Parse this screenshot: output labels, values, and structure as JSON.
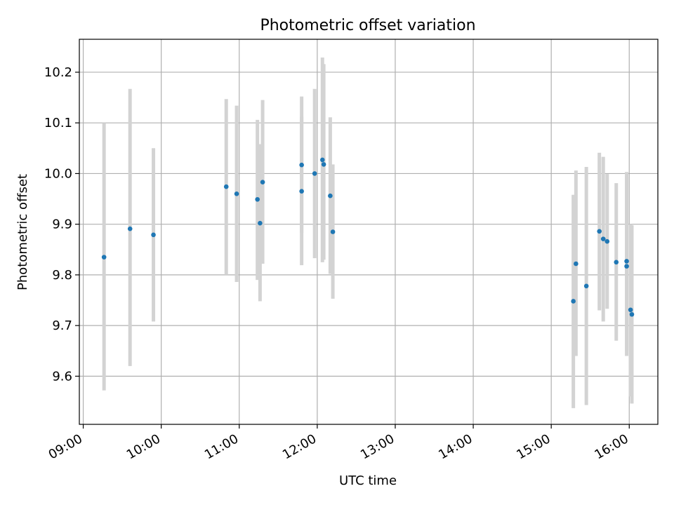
{
  "chart_data": {
    "type": "scatter",
    "title": "Photometric offset variation",
    "xlabel": "UTC time",
    "ylabel": "Photometric offset",
    "x_unit": "hours (UTC)",
    "xlim": [
      "08:57",
      "16:22"
    ],
    "ylim": [
      9.505,
      10.265
    ],
    "xticks": [
      "09:00",
      "10:00",
      "11:00",
      "12:00",
      "13:00",
      "14:00",
      "15:00",
      "16:00"
    ],
    "yticks": [
      "9.6",
      "9.7",
      "9.8",
      "9.9",
      "10.0",
      "10.1",
      "10.2"
    ],
    "grid": true,
    "legend": false,
    "colors": {
      "points": "#1f77b4",
      "errorbars": "#d3d3d3",
      "grid": "#b0b0b0"
    },
    "points": [
      {
        "time": "09:16",
        "y": 9.835,
        "err_low": 9.572,
        "err_high": 10.1
      },
      {
        "time": "09:36",
        "y": 9.891,
        "err_low": 9.62,
        "err_high": 10.167
      },
      {
        "time": "09:54",
        "y": 9.879,
        "err_low": 9.708,
        "err_high": 10.05
      },
      {
        "time": "10:50",
        "y": 9.974,
        "err_low": 9.8,
        "err_high": 10.147
      },
      {
        "time": "10:58",
        "y": 9.96,
        "err_low": 9.786,
        "err_high": 10.134
      },
      {
        "time": "11:14",
        "y": 9.949,
        "err_low": 9.79,
        "err_high": 10.106
      },
      {
        "time": "11:16",
        "y": 9.902,
        "err_low": 9.748,
        "err_high": 10.058
      },
      {
        "time": "11:18",
        "y": 9.983,
        "err_low": 9.822,
        "err_high": 10.145
      },
      {
        "time": "11:48",
        "y": 10.017,
        "err_low": 9.883,
        "err_high": 10.152
      },
      {
        "time": "11:48",
        "y": 9.965,
        "err_low": 9.819,
        "err_high": 10.112
      },
      {
        "time": "11:58",
        "y": 10.0,
        "err_low": 9.833,
        "err_high": 10.167
      },
      {
        "time": "12:04",
        "y": 10.027,
        "err_low": 9.825,
        "err_high": 10.229
      },
      {
        "time": "12:05",
        "y": 10.018,
        "err_low": 9.83,
        "err_high": 10.216
      },
      {
        "time": "12:10",
        "y": 9.956,
        "err_low": 9.802,
        "err_high": 10.111
      },
      {
        "time": "12:12",
        "y": 9.885,
        "err_low": 9.753,
        "err_high": 10.018
      },
      {
        "time": "15:17",
        "y": 9.748,
        "err_low": 9.537,
        "err_high": 9.958
      },
      {
        "time": "15:19",
        "y": 9.822,
        "err_low": 9.64,
        "err_high": 10.006
      },
      {
        "time": "15:27",
        "y": 9.778,
        "err_low": 9.543,
        "err_high": 10.013
      },
      {
        "time": "15:37",
        "y": 9.886,
        "err_low": 9.73,
        "err_high": 10.041
      },
      {
        "time": "15:40",
        "y": 9.871,
        "err_low": 9.708,
        "err_high": 10.033
      },
      {
        "time": "15:43",
        "y": 9.866,
        "err_low": 9.733,
        "err_high": 9.999
      },
      {
        "time": "15:50",
        "y": 9.825,
        "err_low": 9.67,
        "err_high": 9.981
      },
      {
        "time": "15:58",
        "y": 9.827,
        "err_low": 9.65,
        "err_high": 10.003
      },
      {
        "time": "15:58",
        "y": 9.817,
        "err_low": 9.64,
        "err_high": 9.994
      },
      {
        "time": "16:01",
        "y": 9.731,
        "err_low": 9.56,
        "err_high": 9.9
      },
      {
        "time": "16:02",
        "y": 9.722,
        "err_low": 9.546,
        "err_high": 9.898
      }
    ]
  }
}
